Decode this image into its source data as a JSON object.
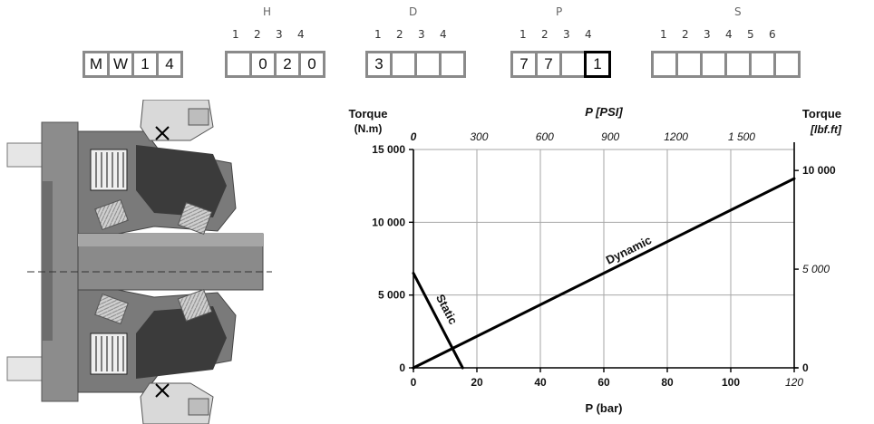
{
  "code_selector": {
    "groups": [
      {
        "title": "",
        "positions": [],
        "cells": [
          "M",
          "W",
          "1",
          "4"
        ]
      },
      {
        "title": "H",
        "positions": [
          "1",
          "2",
          "3",
          "4"
        ],
        "cells": [
          "",
          "0",
          "2",
          "0"
        ]
      },
      {
        "title": "D",
        "positions": [
          "1",
          "2",
          "3",
          "4"
        ],
        "cells": [
          "3",
          "",
          "",
          ""
        ]
      },
      {
        "title": "P",
        "positions": [
          "1",
          "2",
          "3",
          "4"
        ],
        "cells": [
          "7",
          "7",
          "",
          "1"
        ]
      },
      {
        "title": "S",
        "positions": [
          "1",
          "2",
          "3",
          "4",
          "5",
          "6"
        ],
        "cells": [
          "",
          "",
          "",
          "",
          "",
          ""
        ]
      }
    ]
  },
  "chart_data": {
    "type": "line",
    "title": "",
    "xlabel": "P (bar)",
    "x2label": "P [PSI]",
    "ylabel": "Torque\n(N.m)",
    "y2label": "Torque\n[lbf.ft]",
    "xlim": [
      0,
      120
    ],
    "ylim": [
      0,
      15000
    ],
    "x_ticks": [
      "0",
      "20",
      "40",
      "60",
      "80",
      "100",
      "120"
    ],
    "x2_ticks": [
      "0",
      "300",
      "600",
      "900",
      "1200",
      "1 500"
    ],
    "y_ticks": [
      "0",
      "5 000",
      "10 000",
      "15 000"
    ],
    "y2_ticks": [
      "0",
      "5 000",
      "10 000"
    ],
    "grid": true,
    "series": [
      {
        "name": "Dynamic",
        "x": [
          0,
          120
        ],
        "y": [
          0,
          13000
        ]
      },
      {
        "name": "Static",
        "x": [
          0,
          15.5
        ],
        "y": [
          6500,
          0
        ]
      }
    ]
  }
}
